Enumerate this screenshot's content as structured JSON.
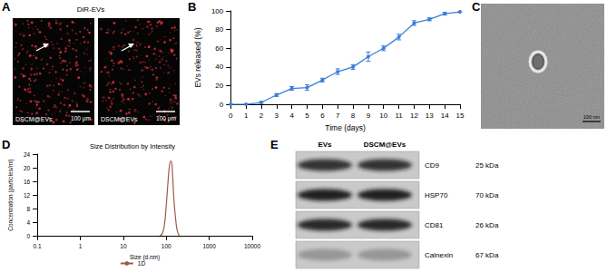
{
  "panel_labels": [
    "A",
    "B",
    "C",
    "D",
    "E"
  ],
  "panel_a": {
    "title": "DiR-EVs",
    "images": [
      {
        "label": "DSCM@EVs",
        "scale_bar": "100 μm"
      },
      {
        "label": "DSCM@EVs",
        "scale_bar": "100 μm"
      }
    ]
  },
  "chart_data": [
    {
      "type": "line",
      "x_label": "Time (days)",
      "y_label": "EVs released (%)",
      "x": [
        0,
        1,
        2,
        3,
        4,
        5,
        6,
        7,
        8,
        9,
        10,
        11,
        12,
        13,
        14,
        15
      ],
      "series": [
        {
          "color": "#3b7dd8",
          "marker": "circle",
          "values": [
            0,
            0,
            2,
            10,
            17,
            18,
            26,
            35,
            40,
            51,
            60,
            72,
            87,
            91,
            97,
            99
          ],
          "errors": [
            0.5,
            0.5,
            1,
            1.5,
            2,
            3,
            2,
            3,
            2.5,
            5,
            2.5,
            3,
            2.5,
            1.5,
            1.5,
            1
          ]
        }
      ],
      "xlim": [
        0,
        15
      ],
      "xticks": [
        0,
        1,
        2,
        3,
        4,
        5,
        6,
        7,
        8,
        9,
        10,
        11,
        12,
        13,
        14,
        15
      ],
      "ylim": [
        0,
        100
      ],
      "yticks": [
        0,
        20,
        40,
        60,
        80,
        100
      ],
      "grid": false
    },
    {
      "type": "line",
      "title": "Size Distribution by Intensity",
      "x_label": "Size (d.nm)",
      "y_label": "Concentration (particles/ml)",
      "x": [
        70,
        80,
        90,
        100,
        110,
        120,
        130,
        140,
        150,
        165,
        180,
        200
      ],
      "series": [
        {
          "name": "1D",
          "color": "#9c5a4c",
          "marker": "none",
          "values": [
            0,
            0.5,
            3,
            9,
            16,
            21,
            22,
            18,
            11,
            5,
            1.5,
            0
          ]
        }
      ],
      "xlim": [
        0.1,
        10000
      ],
      "xticks": [
        0.1,
        1,
        10,
        100,
        1000,
        10000
      ],
      "ylim": [
        0,
        24
      ],
      "yticks": [
        0,
        4,
        8,
        12,
        16,
        20,
        24
      ],
      "log": "x",
      "legend": "bottom",
      "grid": false
    }
  ],
  "panel_c": {
    "scale_bar": "100 nm"
  },
  "panel_e": {
    "columns": [
      "EVs",
      "DSCM@EVs"
    ],
    "rows": [
      {
        "protein": "CD9",
        "size": "25 kDa"
      },
      {
        "protein": "HSP70",
        "size": "70 kDa"
      },
      {
        "protein": "CD81",
        "size": "26 kDa"
      },
      {
        "protein": "Calnexin",
        "size": "67 kDa"
      }
    ]
  }
}
